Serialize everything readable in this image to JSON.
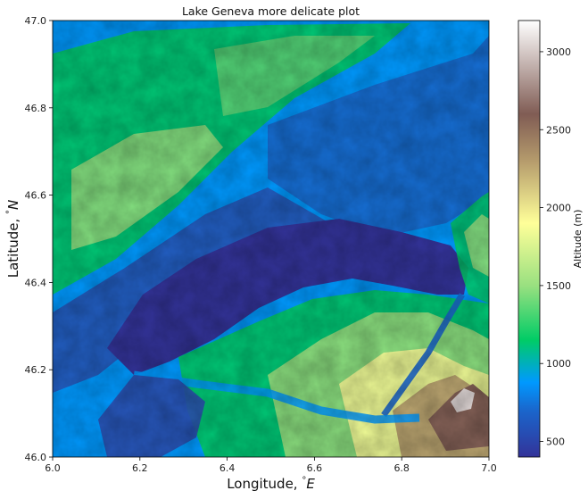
{
  "chart_data": {
    "type": "heatmap",
    "title": "Lake Geneva more delicate plot",
    "xlabel": "Longitude, ",
    "xlabel_unit": "E",
    "ylabel": "Latitude, ",
    "ylabel_unit": "N",
    "degree_symbol": "°",
    "xlim": [
      6.0,
      7.0
    ],
    "ylim": [
      46.0,
      47.0
    ],
    "x_ticks": [
      "6.0",
      "6.2",
      "6.4",
      "6.6",
      "6.8",
      "7.0"
    ],
    "x_tick_values": [
      6.0,
      6.2,
      6.4,
      6.6,
      6.8,
      7.0
    ],
    "y_ticks": [
      "46.0",
      "46.2",
      "46.4",
      "46.6",
      "46.8",
      "47.0"
    ],
    "y_tick_values": [
      46.0,
      46.2,
      46.4,
      46.6,
      46.8,
      47.0
    ],
    "colorbar": {
      "label": "Altitude (m)",
      "range": [
        400,
        3200
      ],
      "ticks": [
        "500",
        "1000",
        "1500",
        "2000",
        "2500",
        "3000"
      ],
      "tick_values": [
        500,
        1000,
        1500,
        2000,
        2500,
        3000
      ],
      "colormap": "terrain"
    },
    "colormap_stops": [
      {
        "v": 400,
        "color": "#333399"
      },
      {
        "v": 700,
        "color": "#1a66cc"
      },
      {
        "v": 880,
        "color": "#0099ff"
      },
      {
        "v": 1150,
        "color": "#00cc66"
      },
      {
        "v": 1500,
        "color": "#99e080"
      },
      {
        "v": 1900,
        "color": "#ffff99"
      },
      {
        "v": 2300,
        "color": "#b59b6c"
      },
      {
        "v": 2600,
        "color": "#805c54"
      },
      {
        "v": 3200,
        "color": "#ffffff"
      }
    ],
    "lake_altitude_m": 372,
    "grid": false
  }
}
